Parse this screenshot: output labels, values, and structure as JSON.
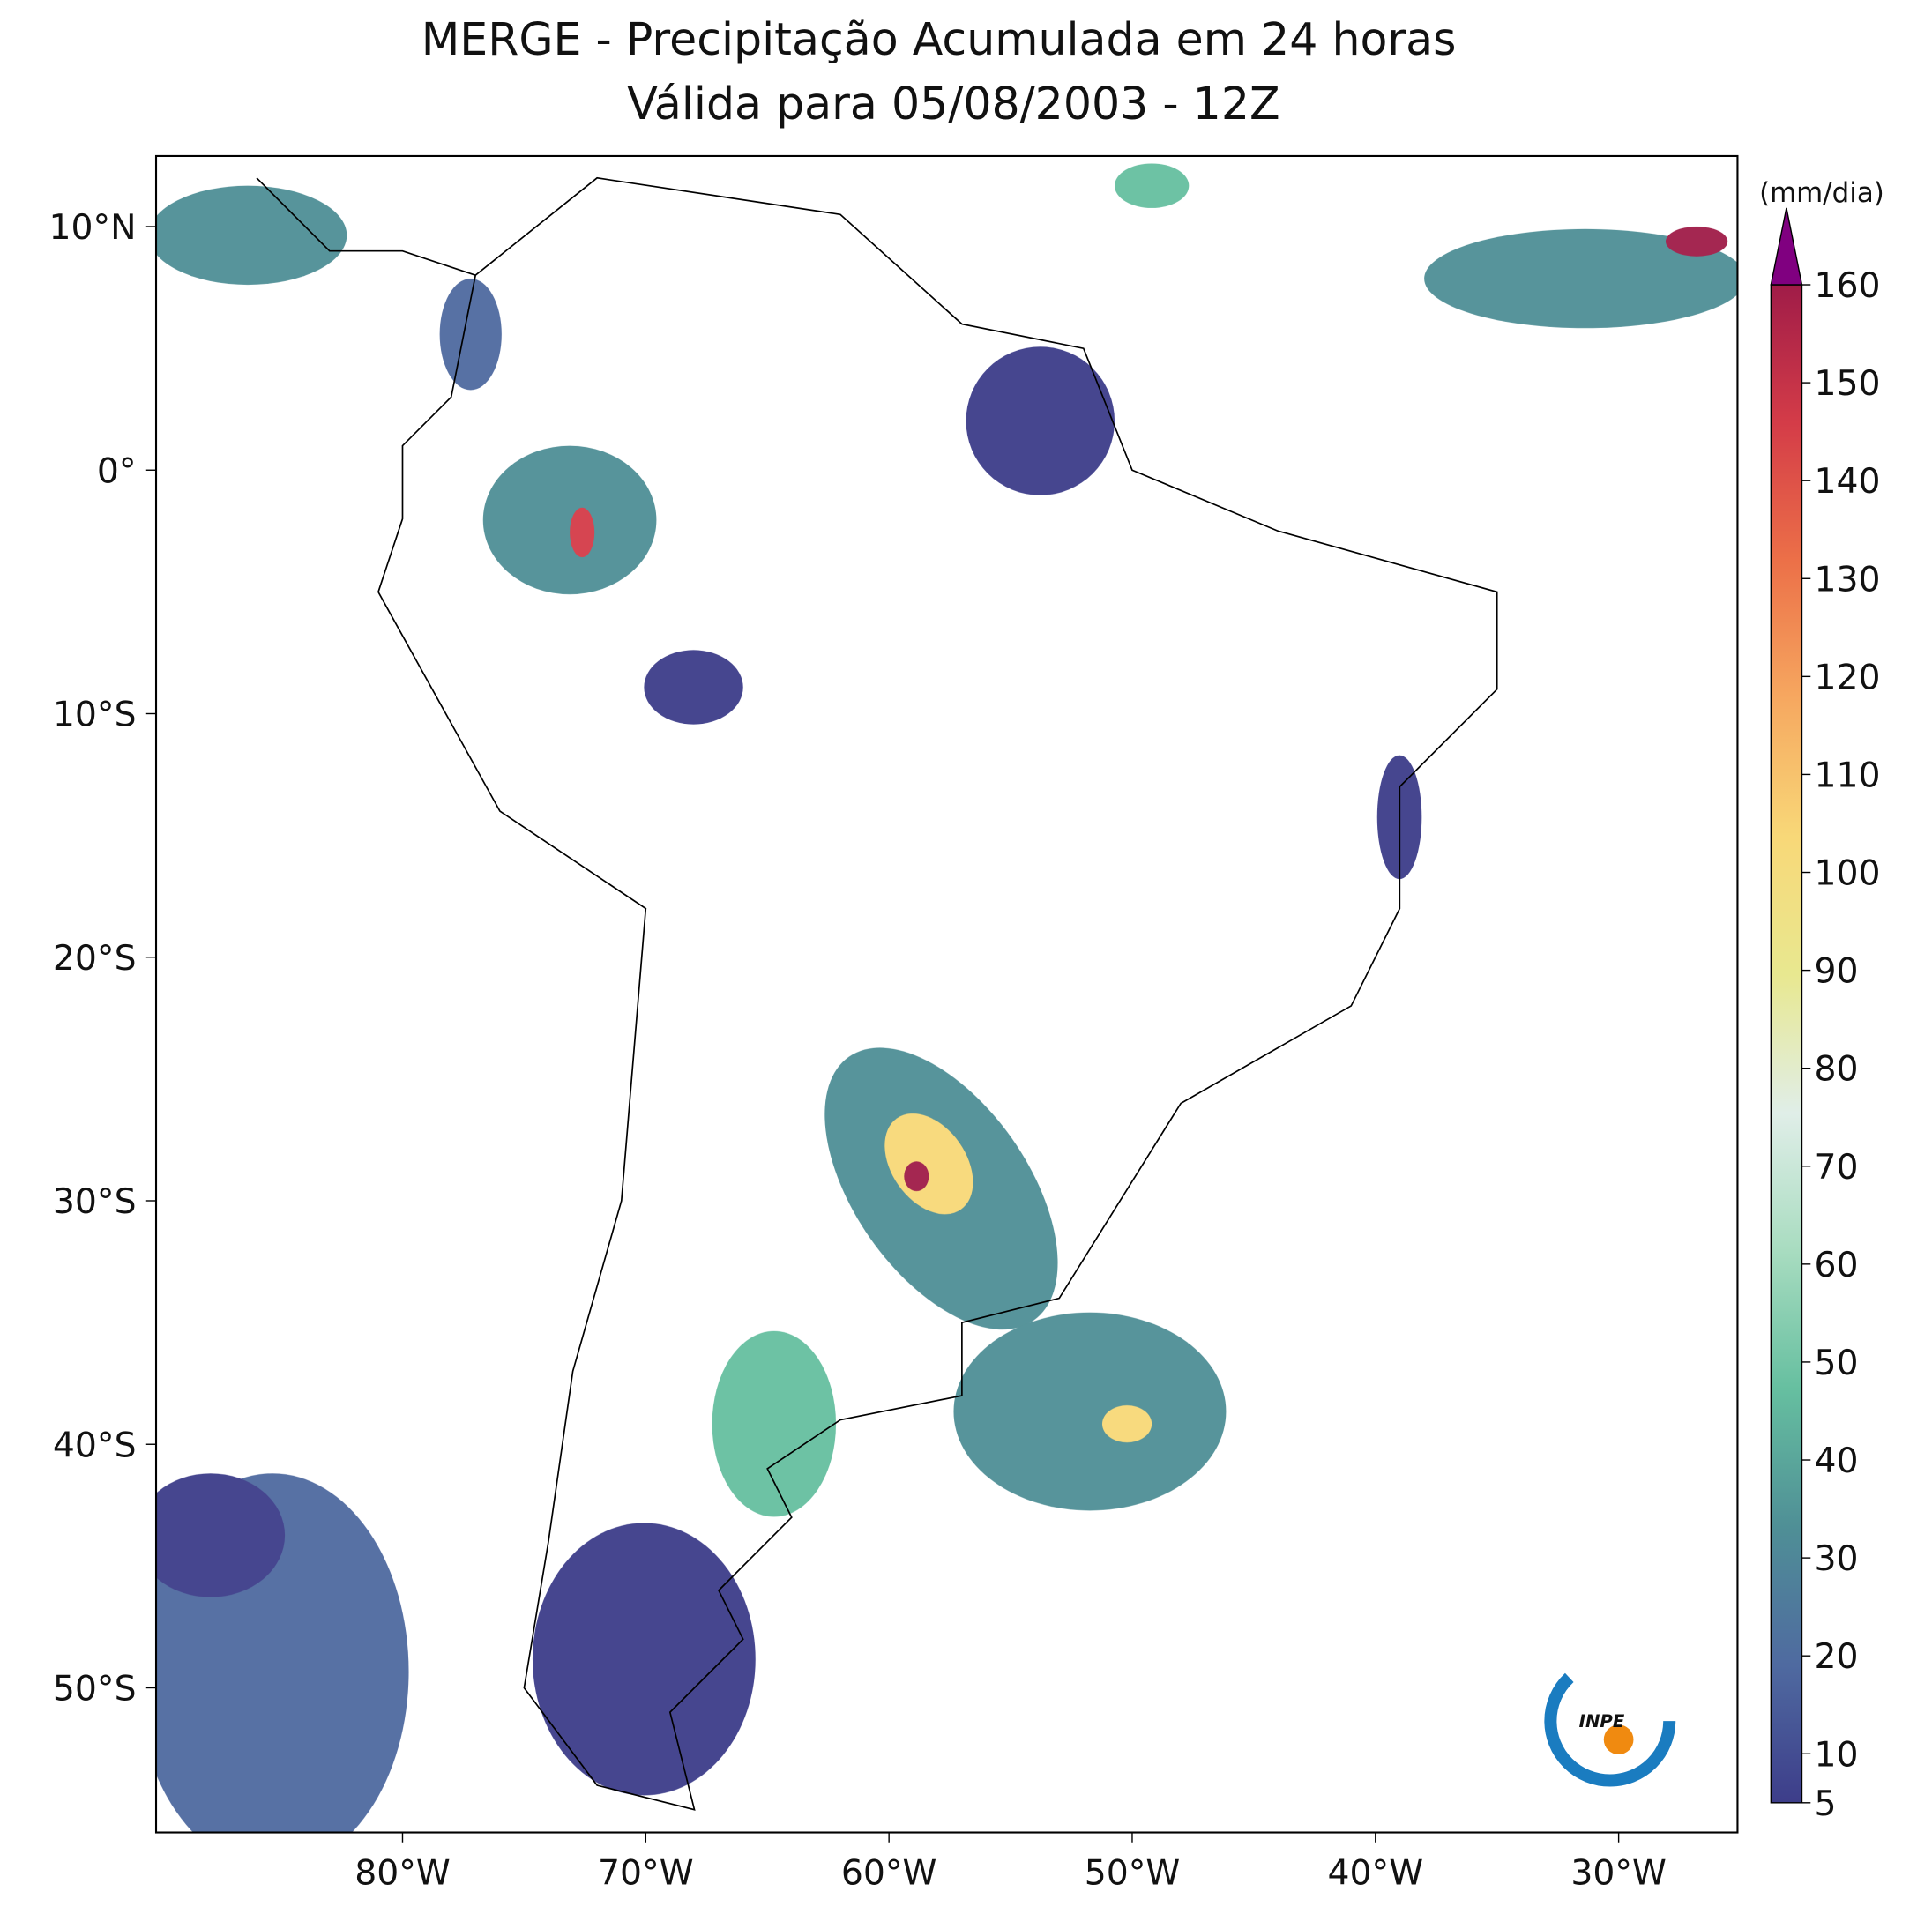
{
  "header": {
    "title": "MERGE - Precipitação Acumulada em 24 horas",
    "subtitle": "Válida para 05/08/2003 - 12Z"
  },
  "map": {
    "lon_ticks": [
      {
        "value": -80,
        "label": "80°W"
      },
      {
        "value": -70,
        "label": "70°W"
      },
      {
        "value": -60,
        "label": "60°W"
      },
      {
        "value": -50,
        "label": "50°W"
      },
      {
        "value": -40,
        "label": "40°W"
      },
      {
        "value": -30,
        "label": "30°W"
      }
    ],
    "lat_ticks": [
      {
        "value": 10,
        "label": "10°N"
      },
      {
        "value": 0,
        "label": "0°"
      },
      {
        "value": -10,
        "label": "10°S"
      },
      {
        "value": -20,
        "label": "20°S"
      },
      {
        "value": -30,
        "label": "30°S"
      },
      {
        "value": -40,
        "label": "40°S"
      },
      {
        "value": -50,
        "label": "50°S"
      }
    ]
  },
  "colorbar": {
    "unit": "(mm/dia)",
    "ticks": [
      5,
      10,
      20,
      30,
      40,
      50,
      60,
      70,
      80,
      90,
      100,
      110,
      120,
      130,
      140,
      150,
      160
    ],
    "colors": [
      "#3d3d8a",
      "#4f6aa0",
      "#4f8f96",
      "#66bfa0",
      "#a8dcc0",
      "#e0eee8",
      "#e8e890",
      "#f8d878",
      "#f6a860",
      "#ec7048",
      "#d43c48",
      "#a01c48"
    ],
    "over_color": "#800080"
  },
  "logo": {
    "text": "INPE"
  }
}
